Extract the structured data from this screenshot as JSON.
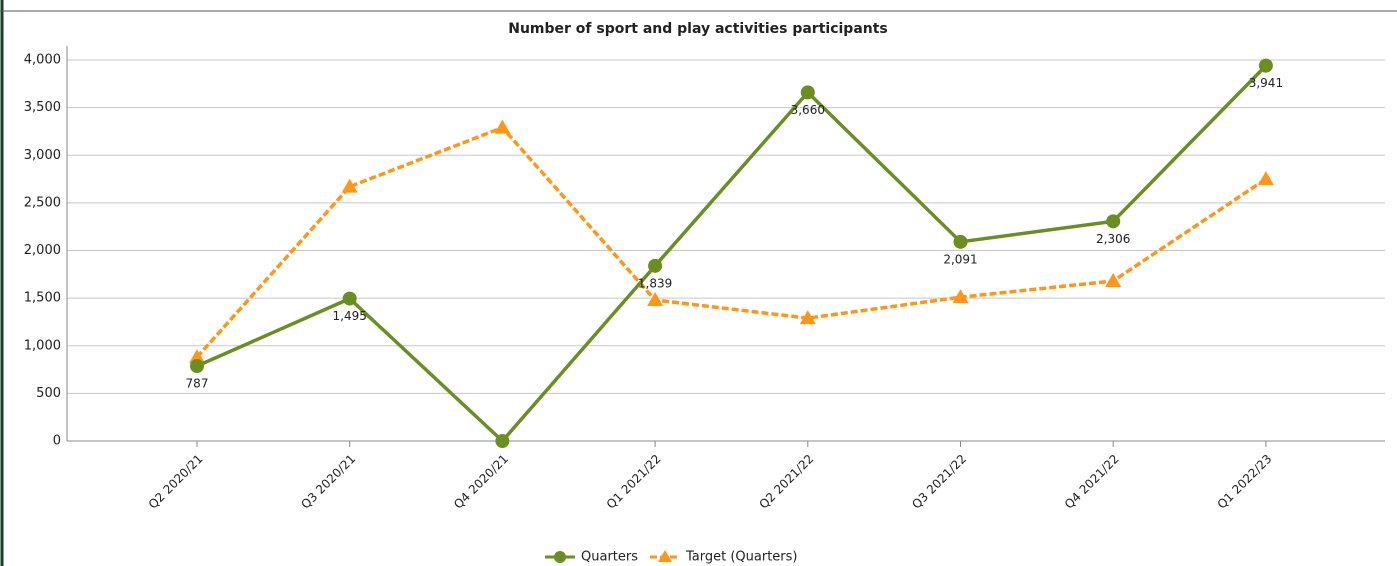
{
  "chart_data": {
    "type": "line",
    "title": "Number of sport and play activities participants",
    "categories": [
      "Q2 2020/21",
      "Q3 2020/21",
      "Q4 2020/21",
      "Q1 2021/22",
      "Q2 2021/22",
      "Q3 2021/22",
      "Q4 2021/22",
      "Q1 2022/23"
    ],
    "series": [
      {
        "name": "Quarters",
        "color": "#6b8e23",
        "marker": "circle",
        "dashed": false,
        "values": [
          787,
          1495,
          0,
          1839,
          3660,
          2091,
          2306,
          3941
        ],
        "value_labels": [
          "787",
          "1,495",
          null,
          "1,839",
          "3,660",
          "2,091",
          "2,306",
          "3,941"
        ]
      },
      {
        "name": "Target (Quarters)",
        "color": "#ff9616",
        "marker": "triangle",
        "dashed": true,
        "values": [
          880,
          2670,
          3290,
          1480,
          1290,
          1510,
          1680,
          2750
        ]
      }
    ],
    "ylim": [
      0,
      4000
    ],
    "yticks": [
      0,
      500,
      {
        "value": 1000,
        "label": "1,000"
      },
      {
        "value": 1500,
        "label": "1,500"
      },
      {
        "value": 2000,
        "label": "2,000"
      },
      {
        "value": 2500,
        "label": "2,500"
      },
      {
        "value": 3000,
        "label": "3,000"
      },
      {
        "value": 3500,
        "label": "3,500"
      },
      {
        "value": 4000,
        "label": "4,000"
      }
    ],
    "grid": true,
    "legend": "bottom"
  }
}
